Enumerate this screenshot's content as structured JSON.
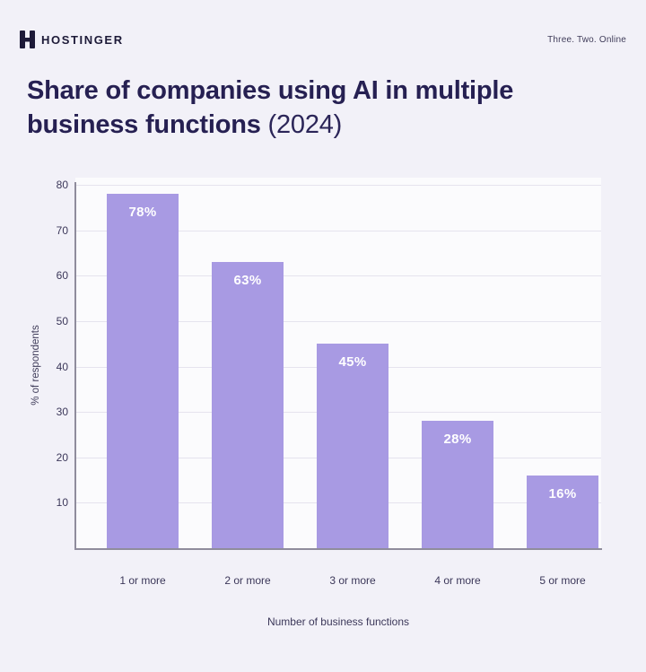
{
  "header": {
    "brand": "HOSTINGER",
    "logo_icon": "hostinger-h-icon",
    "tagline": "Three. Two. Online"
  },
  "title": {
    "line1": "Share of companies using AI in multiple",
    "line2_bold": "business functions ",
    "line2_light": "(2024)"
  },
  "chart_data": {
    "type": "bar",
    "title": "Share of companies using AI in multiple business functions (2024)",
    "categories": [
      "1 or more",
      "2 or more",
      "3 or more",
      "4 or more",
      "5 or more"
    ],
    "values": [
      78,
      63,
      45,
      28,
      16
    ],
    "value_labels": [
      "78%",
      "63%",
      "45%",
      "28%",
      "16%"
    ],
    "xlabel": "Number of business functions",
    "ylabel": "% of respondents",
    "ylim": [
      0,
      80
    ],
    "yticks": [
      10,
      20,
      30,
      40,
      50,
      60,
      70,
      80
    ],
    "grid": true,
    "legend": "none",
    "bar_color": "#a89ae3",
    "value_label_color": "#ffffff"
  },
  "colors": {
    "page_background": "#f2f1f8",
    "plot_background": "#fbfbfd",
    "bar": "#a89ae3",
    "title_text": "#262052",
    "axis_text": "#3b3759",
    "spine": "#8f8c9c",
    "gridline": "#e5e3ee",
    "brand_text": "#1d1a38"
  }
}
